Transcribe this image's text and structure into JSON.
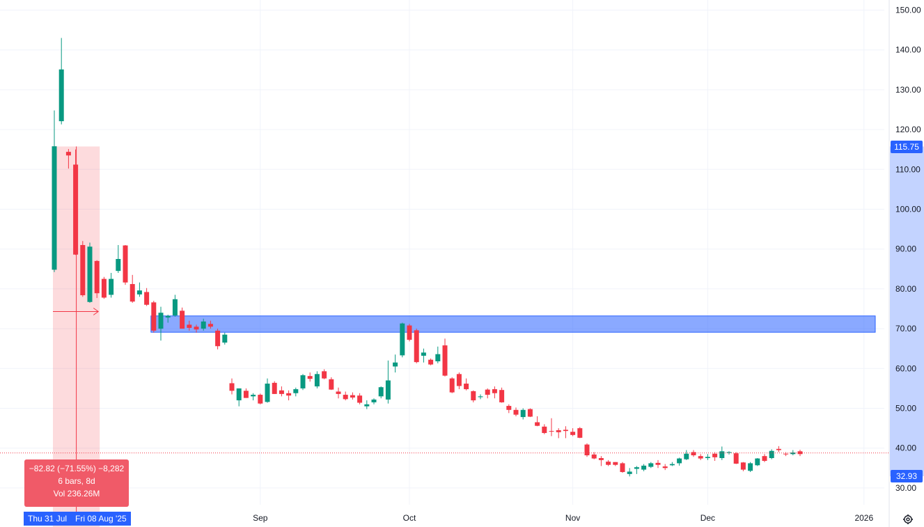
{
  "chart_data": {
    "type": "candlestick",
    "y_axis": {
      "ylim": [
        26.6,
        154.0
      ],
      "ticks": [
        "150.00",
        "140.00",
        "130.00",
        "120.00",
        "110.00",
        "100.00",
        "90.00",
        "80.00",
        "70.00",
        "60.00",
        "50.00",
        "40.00",
        "30.00"
      ],
      "tick_values": [
        150,
        140,
        130,
        120,
        110,
        100,
        90,
        80,
        70,
        60,
        50,
        40,
        30
      ]
    },
    "x_axis": {
      "labels": [
        {
          "text": "Sep",
          "bar": 29
        },
        {
          "text": "Oct",
          "bar": 50
        },
        {
          "text": "Nov",
          "bar": 73
        },
        {
          "text": "Dec",
          "bar": 92
        },
        {
          "text": "2026",
          "bar": 114
        }
      ]
    },
    "grid": true,
    "colors": {
      "up": "#089981",
      "down": "#f23645",
      "measure": "#f23645",
      "zone": "#2962ff",
      "accent": "#2962ff"
    },
    "current_price": 38.8,
    "candles": [
      [
        84.8,
        124.8,
        84.2,
        115.8
      ],
      [
        122.1,
        143.0,
        121.3,
        135.1
      ],
      [
        114.4,
        115.1,
        110.2,
        113.5
      ],
      [
        111.2,
        115.0,
        88.5,
        88.6
      ],
      [
        91.0,
        92.0,
        78.0,
        78.4
      ],
      [
        76.7,
        91.6,
        76.5,
        90.6
      ],
      [
        87.0,
        87.2,
        77.7,
        78.9
      ],
      [
        82.5,
        83.0,
        77.5,
        77.8
      ],
      [
        78.5,
        84.0,
        77.8,
        82.5
      ],
      [
        84.5,
        91.0,
        84.0,
        87.5
      ],
      [
        90.9,
        91.0,
        81.0,
        81.6
      ],
      [
        81.2,
        83.5,
        76.5,
        76.8
      ],
      [
        78.6,
        81.6,
        78.0,
        79.6
      ],
      [
        79.2,
        80.2,
        75.7,
        76.0
      ],
      [
        76.6,
        77.0,
        69.0,
        69.5
      ],
      [
        70.0,
        75.5,
        67.0,
        74.0
      ],
      [
        72.8,
        73.5,
        71.5,
        73.2
      ],
      [
        73.3,
        78.5,
        73.0,
        77.4
      ],
      [
        74.5,
        75.3,
        70.0,
        70.0
      ],
      [
        71.0,
        72.0,
        69.5,
        70.2
      ],
      [
        70.5,
        71.0,
        69.0,
        69.8
      ],
      [
        70.0,
        72.5,
        69.5,
        71.8
      ],
      [
        71.2,
        72.0,
        70.0,
        70.5
      ],
      [
        69.5,
        70.0,
        64.8,
        65.6
      ],
      [
        66.5,
        69.0,
        66.0,
        68.5
      ],
      [
        56.3,
        57.5,
        53.5,
        54.4
      ],
      [
        52.0,
        55.0,
        50.5,
        55.0
      ],
      [
        54.4,
        55.0,
        52.6,
        52.6
      ],
      [
        53.0,
        53.8,
        52.0,
        53.4
      ],
      [
        53.4,
        53.7,
        51.0,
        51.2
      ],
      [
        51.6,
        57.5,
        51.4,
        56.2
      ],
      [
        56.4,
        56.8,
        53.6,
        53.6
      ],
      [
        54.5,
        55.5,
        53.0,
        53.6
      ],
      [
        53.8,
        54.5,
        52.0,
        53.2
      ],
      [
        53.8,
        55.2,
        53.0,
        54.8
      ],
      [
        55.0,
        58.6,
        54.6,
        58.3
      ],
      [
        58.1,
        59.0,
        56.7,
        57.4
      ],
      [
        55.5,
        59.3,
        55.0,
        58.6
      ],
      [
        59.3,
        59.8,
        57.3,
        57.5
      ],
      [
        57.3,
        57.8,
        54.6,
        54.7
      ],
      [
        54.2,
        55.2,
        52.5,
        53.6
      ],
      [
        53.4,
        54.2,
        52.0,
        52.3
      ],
      [
        53.3,
        54.0,
        52.2,
        52.7
      ],
      [
        53.2,
        53.8,
        51.0,
        51.4
      ],
      [
        50.5,
        52.0,
        49.8,
        51.0
      ],
      [
        51.5,
        52.5,
        51.0,
        52.2
      ],
      [
        53.0,
        55.5,
        52.5,
        55.3
      ],
      [
        52.2,
        62.0,
        51.2,
        57.0
      ],
      [
        60.5,
        63.5,
        59.0,
        61.5
      ],
      [
        63.3,
        71.5,
        62.8,
        71.3
      ],
      [
        70.8,
        71.2,
        66.8,
        67.2
      ],
      [
        69.6,
        70.0,
        61.3,
        61.6
      ],
      [
        63.2,
        65.0,
        61.5,
        64.0
      ],
      [
        62.2,
        62.5,
        60.8,
        61.0
      ],
      [
        61.8,
        65.5,
        61.3,
        63.6
      ],
      [
        65.8,
        67.5,
        58.0,
        58.2
      ],
      [
        57.5,
        57.8,
        53.8,
        54.0
      ],
      [
        58.6,
        59.0,
        54.8,
        55.6
      ],
      [
        56.2,
        57.5,
        54.5,
        54.8
      ],
      [
        54.3,
        54.5,
        51.5,
        52.0
      ],
      [
        52.8,
        53.5,
        52.3,
        53.0
      ],
      [
        54.7,
        55.0,
        52.5,
        53.4
      ],
      [
        54.8,
        55.5,
        52.5,
        53.8
      ],
      [
        54.6,
        55.2,
        51.4,
        51.5
      ],
      [
        50.6,
        51.0,
        48.8,
        49.6
      ],
      [
        49.6,
        50.2,
        48.0,
        48.4
      ],
      [
        47.8,
        50.0,
        47.2,
        49.6
      ],
      [
        49.8,
        50.0,
        47.8,
        47.9
      ],
      [
        46.5,
        48.0,
        45.5,
        45.6
      ],
      [
        45.4,
        46.0,
        43.5,
        43.8
      ],
      [
        44.3,
        47.5,
        43.0,
        44.2
      ],
      [
        44.5,
        45.0,
        42.5,
        44.0
      ],
      [
        44.6,
        45.5,
        42.5,
        44.3
      ],
      [
        44.1,
        45.0,
        43.0,
        43.3
      ],
      [
        45.0,
        45.3,
        42.5,
        42.6
      ],
      [
        40.9,
        41.2,
        37.8,
        38.2
      ],
      [
        38.4,
        39.0,
        37.2,
        37.4
      ],
      [
        37.5,
        38.0,
        35.5,
        37.0
      ],
      [
        36.6,
        37.0,
        35.5,
        35.8
      ],
      [
        36.5,
        36.5,
        35.5,
        35.8
      ],
      [
        36.2,
        36.5,
        33.8,
        34.0
      ],
      [
        33.5,
        35.0,
        32.9,
        34.1
      ],
      [
        34.8,
        35.5,
        33.5,
        35.2
      ],
      [
        34.6,
        36.0,
        34.2,
        35.6
      ],
      [
        35.3,
        36.5,
        35.0,
        36.2
      ],
      [
        36.3,
        37.0,
        35.0,
        35.8
      ],
      [
        35.4,
        36.0,
        34.5,
        35.0
      ],
      [
        35.7,
        36.5,
        35.5,
        36.0
      ],
      [
        36.2,
        37.6,
        35.6,
        37.4
      ],
      [
        37.2,
        39.5,
        37.0,
        38.6
      ],
      [
        39.0,
        39.5,
        37.8,
        38.2
      ],
      [
        38.0,
        38.5,
        37.0,
        37.4
      ],
      [
        37.5,
        38.5,
        37.0,
        37.8
      ],
      [
        38.6,
        39.0,
        36.8,
        37.7
      ],
      [
        37.5,
        40.4,
        37.0,
        39.2
      ],
      [
        38.8,
        39.2,
        38.4,
        39.0
      ],
      [
        38.7,
        39.0,
        36.0,
        36.1
      ],
      [
        36.4,
        36.5,
        34.2,
        34.6
      ],
      [
        34.3,
        36.5,
        34.0,
        36.2
      ],
      [
        35.7,
        37.5,
        35.5,
        37.4
      ],
      [
        38.0,
        38.5,
        36.5,
        36.8
      ],
      [
        37.5,
        39.7,
        37.2,
        39.3
      ],
      [
        39.8,
        40.5,
        39.0,
        39.5
      ],
      [
        38.6,
        39.0,
        38.0,
        38.5
      ],
      [
        38.5,
        39.5,
        38.2,
        38.9
      ],
      [
        39.2,
        39.6,
        38.0,
        38.5
      ]
    ],
    "zone": {
      "bar_start": 14,
      "bar_end": 121,
      "price_top": 73.2,
      "price_bottom": 69.1
    },
    "measure": {
      "bar_start": 0,
      "bar_end": 6,
      "price_from": 115.75,
      "price_to": 32.93,
      "line1": "−82.82 (−71.55%) −8,282",
      "line2": "6 bars, 8d",
      "line3": "Vol 236.26M"
    },
    "axis_badges": {
      "measure_top": "115.75",
      "measure_bottom": "32.93"
    },
    "date_range": {
      "start": "Thu 31 Jul",
      "end": "Fri 08 Aug '25"
    }
  },
  "icons": {
    "settings": "gear-icon"
  }
}
